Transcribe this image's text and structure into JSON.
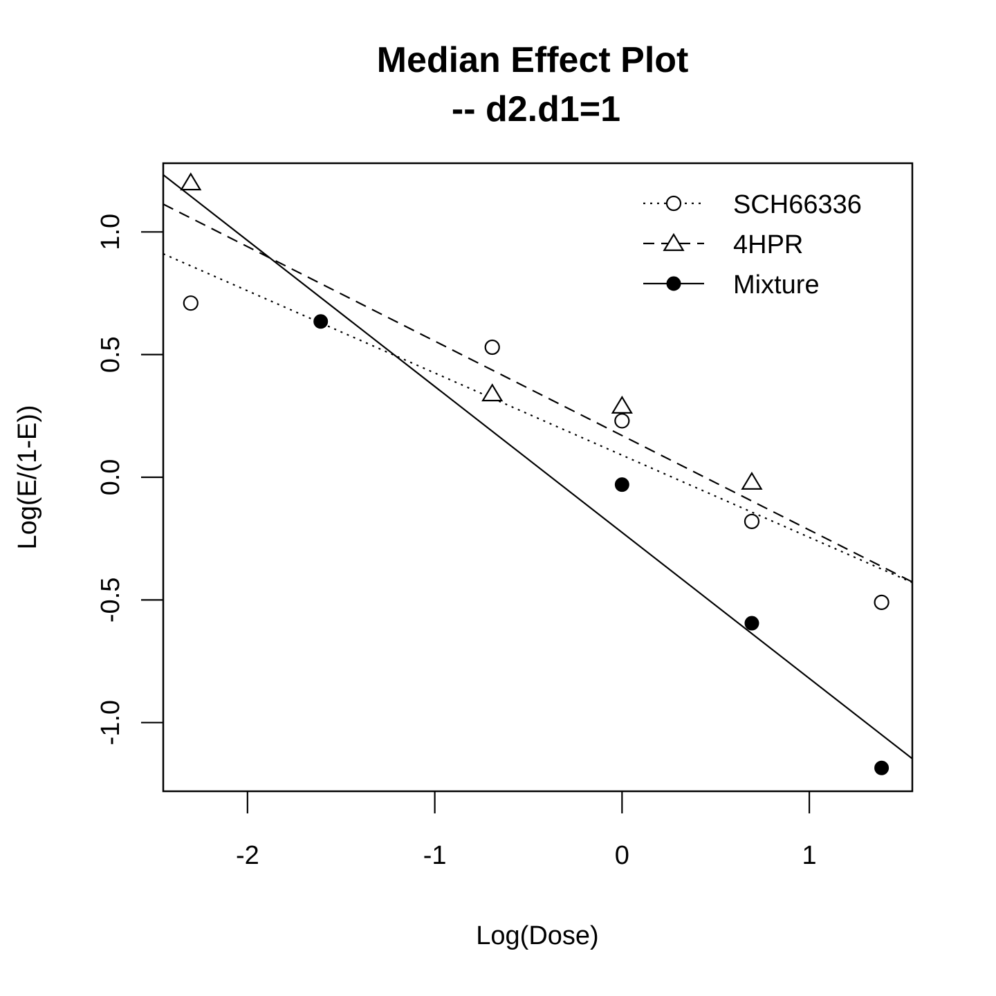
{
  "chart_data": {
    "type": "scatter",
    "title": "Median Effect Plot",
    "subtitle": "-- d2.d1=1",
    "xlabel": "Log(Dose)",
    "ylabel": "Log(E/(1-E))",
    "xlim": [
      -2.45,
      1.55
    ],
    "ylim": [
      -1.28,
      1.28
    ],
    "xticks": [
      -2,
      -1,
      0,
      1
    ],
    "yticks": [
      -1.0,
      -0.5,
      0.0,
      0.5,
      1.0
    ],
    "xtick_labels": [
      "-2",
      "-1",
      "0",
      "1"
    ],
    "ytick_labels": [
      "-1.0",
      "-0.5",
      "0.0",
      "0.5",
      "1.0"
    ],
    "legend_position": "top-right",
    "series": [
      {
        "name": "SCH66336",
        "marker": "open-circle",
        "line": "dotted",
        "x": [
          -2.303,
          -0.693,
          0.0,
          0.693,
          1.386
        ],
        "y": [
          0.71,
          0.53,
          0.23,
          -0.18,
          -0.51
        ],
        "fit": {
          "intercept": 0.09,
          "slope": -0.335
        }
      },
      {
        "name": "4HPR",
        "marker": "open-triangle",
        "line": "dashed",
        "x": [
          -2.303,
          -0.693,
          0.0,
          0.693
        ],
        "y": [
          1.2,
          0.34,
          0.29,
          -0.02
        ],
        "fit": {
          "intercept": 0.17,
          "slope": -0.385
        }
      },
      {
        "name": "Mixture",
        "marker": "filled-circle",
        "line": "solid",
        "x": [
          -1.609,
          0.0,
          0.693,
          1.386
        ],
        "y": [
          0.635,
          -0.03,
          -0.595,
          -1.185
        ],
        "fit": {
          "intercept": -0.225,
          "slope": -0.595
        }
      }
    ]
  }
}
